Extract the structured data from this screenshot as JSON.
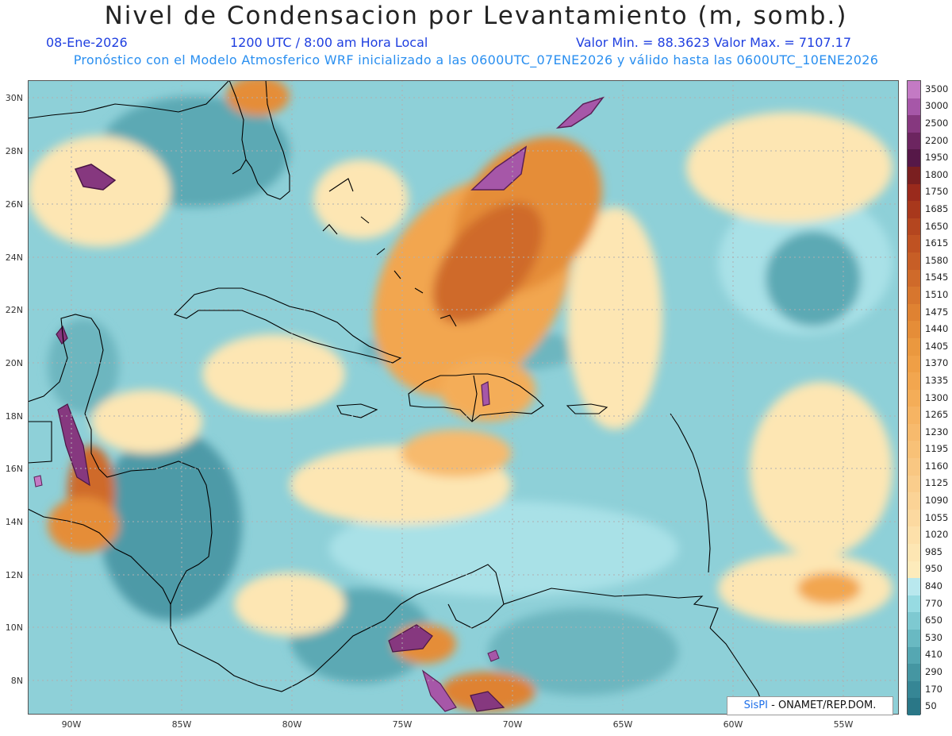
{
  "header": {
    "title": "Nivel de Condensacion por Levantamiento (m, somb.)",
    "date": "08-Ene-2026",
    "time": "1200 UTC / 8:00 am Hora Local",
    "stats": "Valor Min. = 88.3623   Valor Max. = 7107.17",
    "forecast_note": "Pronóstico con el Modelo Atmosferico WRF inicializado a las 0600UTC_07ENE2026 y válido hasta las  0600UTC_10ENE2026"
  },
  "map": {
    "lat_range": [
      6.7,
      30.6
    ],
    "lon_range": [
      -92.0,
      -52.5
    ],
    "lat_ticks": [
      "30N",
      "28N",
      "26N",
      "24N",
      "22N",
      "20N",
      "18N",
      "16N",
      "14N",
      "12N",
      "10N",
      "8N"
    ],
    "lon_ticks": [
      "90W",
      "85W",
      "80W",
      "75W",
      "70W",
      "65W",
      "60W",
      "55W"
    ],
    "background_color": "#8ed0d8",
    "coastline_color": "#000000",
    "gridline_color": "#b0b0b0"
  },
  "legend": {
    "labels": [
      "3500",
      "3000",
      "2500",
      "2200",
      "1950",
      "1800",
      "1750",
      "1685",
      "1650",
      "1615",
      "1580",
      "1545",
      "1510",
      "1475",
      "1440",
      "1405",
      "1370",
      "1335",
      "1300",
      "1265",
      "1230",
      "1195",
      "1160",
      "1125",
      "1090",
      "1055",
      "1020",
      "985",
      "950",
      "840",
      "770",
      "650",
      "530",
      "410",
      "290",
      "170",
      "50"
    ],
    "colors": [
      "#c37ac4",
      "#a657a8",
      "#86387f",
      "#6c2560",
      "#561848",
      "#7a1f20",
      "#9a2a1c",
      "#a8381c",
      "#b4461f",
      "#bf5222",
      "#c75e26",
      "#cf6a2a",
      "#d7762e",
      "#df8232",
      "#e58d38",
      "#ea983f",
      "#ef9f46",
      "#f2a64f",
      "#f4ad58",
      "#f6b463",
      "#f7ba6d",
      "#f8c177",
      "#f9c782",
      "#facd8c",
      "#fbd396",
      "#fcd9a0",
      "#fde0aa",
      "#fde6b3",
      "#fdebbb",
      "#b9e8ee",
      "#97dbe2",
      "#7ec9d1",
      "#69b9c2",
      "#55a7b2",
      "#4596a2",
      "#368695",
      "#2a7787"
    ]
  },
  "credit": {
    "logo": "SisPI",
    "text": " - ONAMET/REP.DOM."
  }
}
